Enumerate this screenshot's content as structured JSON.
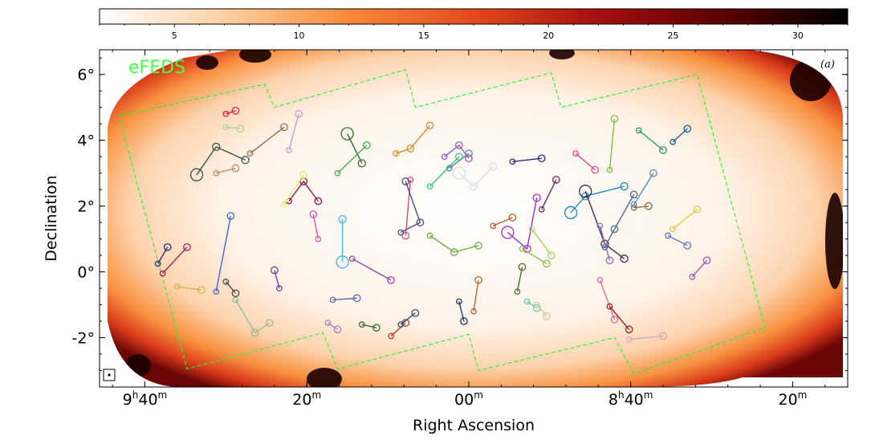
{
  "chart_data": {
    "type": "heatmap",
    "title": "",
    "panel_label": "(a)",
    "field_label": "eFEDS",
    "xlabel": "Right Ascension",
    "ylabel": "Declination",
    "colorbar": {
      "min": 2,
      "max": 32,
      "ticks": [
        5,
        10,
        15,
        20,
        25,
        30
      ],
      "tick_labels": [
        "5",
        "10",
        "15",
        "20",
        "25",
        "30"
      ],
      "colormap": "gist_heat_r",
      "stops": [
        "#ffffff",
        "#fdd0a2",
        "#f88b38",
        "#e34a1d",
        "#a50f0f",
        "#5a0000",
        "#000000"
      ]
    },
    "x_axis": {
      "range_hours": [
        9.76,
        8.22
      ],
      "ticks": [
        {
          "ra_h": 9.6667,
          "hour": "9",
          "min": "40"
        },
        {
          "ra_h": 9.3333,
          "min": "20"
        },
        {
          "ra_h": 9.0,
          "min": "00"
        },
        {
          "ra_h": 8.6667,
          "hour": "8",
          "min": "40"
        },
        {
          "ra_h": 8.3333,
          "min": "20"
        }
      ],
      "minor_step_minutes": 4
    },
    "y_axis": {
      "range_deg": [
        -3.5,
        6.75
      ],
      "ticks": [
        -2,
        0,
        2,
        4,
        6
      ],
      "tick_labels": [
        "-2°",
        "0°",
        "2°",
        "4°",
        "6°"
      ],
      "minor_step_deg": 0.5
    },
    "survey_outline": [
      [
        9.72,
        4.75
      ],
      [
        9.42,
        5.7
      ],
      [
        9.4,
        5.0
      ],
      [
        9.13,
        6.15
      ],
      [
        9.11,
        5.0
      ],
      [
        8.83,
        6.05
      ],
      [
        8.81,
        5.0
      ],
      [
        8.53,
        6.0
      ],
      [
        8.39,
        -1.7
      ],
      [
        8.66,
        -3.1
      ],
      [
        8.7,
        -2.0
      ],
      [
        8.98,
        -3.0
      ],
      [
        9.0,
        -1.9
      ],
      [
        9.27,
        -2.95
      ],
      [
        9.3,
        -1.85
      ],
      [
        9.58,
        -2.95
      ],
      [
        9.72,
        4.75
      ]
    ],
    "group_links": [
      {
        "color": "#e6194b",
        "points": [
          [
            9.5,
            4.8
          ],
          [
            9.48,
            4.9
          ]
        ]
      },
      {
        "color": "#a9d18e",
        "points": [
          [
            9.5,
            4.4
          ],
          [
            9.47,
            4.35
          ]
        ]
      },
      {
        "color": "#2f4f4f",
        "points": [
          [
            9.56,
            2.95
          ],
          [
            9.52,
            3.8
          ],
          [
            9.46,
            3.4
          ]
        ],
        "big": true
      },
      {
        "color": "#c48b6b",
        "points": [
          [
            9.52,
            3.0
          ],
          [
            9.48,
            3.15
          ]
        ]
      },
      {
        "color": "#9a6a4e",
        "points": [
          [
            9.45,
            3.6
          ],
          [
            9.38,
            4.4
          ]
        ]
      },
      {
        "color": "#b9a3d6",
        "points": [
          [
            9.37,
            3.7
          ],
          [
            9.35,
            4.8
          ]
        ]
      },
      {
        "color": "#8b1a4a",
        "points": [
          [
            9.37,
            2.15
          ],
          [
            9.34,
            2.75
          ],
          [
            9.31,
            2.15
          ]
        ]
      },
      {
        "color": "#e8e86a",
        "points": [
          [
            9.38,
            2.05
          ],
          [
            9.34,
            2.95
          ]
        ]
      },
      {
        "color": "#2e6b2e",
        "points": [
          [
            9.25,
            4.2
          ],
          [
            9.22,
            3.3
          ]
        ],
        "big": true
      },
      {
        "color": "#3cb44b",
        "points": [
          [
            9.27,
            3.0
          ],
          [
            9.21,
            3.85
          ]
        ]
      },
      {
        "color": "#4363d8",
        "points": [
          [
            9.52,
            -0.6
          ],
          [
            9.49,
            1.7
          ]
        ]
      },
      {
        "color": "#2a2a7a",
        "points": [
          [
            9.64,
            0.25
          ],
          [
            9.62,
            0.75
          ]
        ]
      },
      {
        "color": "#9a2a55",
        "points": [
          [
            9.63,
            -0.05
          ],
          [
            9.58,
            0.75
          ]
        ]
      },
      {
        "color": "#d6b04a",
        "points": [
          [
            9.6,
            -0.45
          ],
          [
            9.55,
            -0.55
          ]
        ]
      },
      {
        "color": "#8fbf8f",
        "points": [
          [
            9.48,
            -0.85
          ],
          [
            9.44,
            -1.85
          ],
          [
            9.41,
            -1.55
          ]
        ]
      },
      {
        "color": "#4a4a4a",
        "points": [
          [
            9.5,
            -0.3
          ],
          [
            9.48,
            -0.65
          ]
        ]
      },
      {
        "color": "#6a3d9a",
        "points": [
          [
            9.39,
            -0.5
          ],
          [
            9.4,
            0.05
          ]
        ]
      },
      {
        "color": "#42b4e0",
        "points": [
          [
            9.26,
            0.3
          ],
          [
            9.26,
            1.6
          ]
        ],
        "big": true
      },
      {
        "color": "#e056a8",
        "points": [
          [
            9.31,
            1.0
          ],
          [
            9.32,
            1.75
          ]
        ]
      },
      {
        "color": "#8e44ad",
        "points": [
          [
            9.24,
            0.4
          ],
          [
            9.16,
            -0.25
          ]
        ]
      },
      {
        "color": "#5b6ba8",
        "points": [
          [
            9.28,
            -0.85
          ],
          [
            9.23,
            -0.8
          ]
        ]
      },
      {
        "color": "#a080c0",
        "points": [
          [
            9.29,
            -1.55
          ],
          [
            9.27,
            -1.75
          ]
        ]
      },
      {
        "color": "#2e6b2e",
        "points": [
          [
            9.22,
            -1.6
          ],
          [
            9.19,
            -1.7
          ]
        ]
      },
      {
        "color": "#c0392b",
        "points": [
          [
            9.16,
            -1.95
          ],
          [
            9.13,
            -1.55
          ]
        ]
      },
      {
        "color": "#234f6e",
        "points": [
          [
            9.14,
            -1.6
          ],
          [
            9.11,
            -1.25
          ]
        ]
      },
      {
        "color": "#d48a2a",
        "points": [
          [
            9.15,
            3.6
          ],
          [
            9.12,
            3.75
          ],
          [
            9.08,
            4.45
          ]
        ]
      },
      {
        "color": "#e04a7a",
        "points": [
          [
            9.12,
            2.8
          ],
          [
            9.13,
            1.1
          ]
        ]
      },
      {
        "color": "#4a4a8a",
        "points": [
          [
            9.14,
            1.2
          ],
          [
            9.1,
            1.5
          ],
          [
            9.13,
            2.75
          ]
        ]
      },
      {
        "color": "#6ab04c",
        "points": [
          [
            9.08,
            1.1
          ],
          [
            9.03,
            0.6
          ],
          [
            8.98,
            0.8
          ]
        ]
      },
      {
        "color": "#2ecc71",
        "points": [
          [
            9.08,
            2.6
          ],
          [
            9.02,
            3.5
          ]
        ]
      },
      {
        "color": "#9b59b6",
        "points": [
          [
            9.05,
            3.5
          ],
          [
            9.02,
            3.85
          ],
          [
            9.0,
            3.45
          ]
        ]
      },
      {
        "color": "#5f7fa8",
        "points": [
          [
            9.04,
            3.15
          ],
          [
            9.0,
            3.6
          ]
        ]
      },
      {
        "color": "#cfe0ea",
        "points": [
          [
            9.02,
            3.0
          ],
          [
            8.99,
            2.6
          ],
          [
            8.95,
            3.2
          ]
        ],
        "big": true
      },
      {
        "color": "#1a3a6a",
        "points": [
          [
            9.02,
            -0.9
          ],
          [
            9.01,
            -1.5
          ]
        ]
      },
      {
        "color": "#b06a3a",
        "points": [
          [
            8.99,
            -1.2
          ],
          [
            8.98,
            -0.25
          ]
        ]
      },
      {
        "color": "#c05a2a",
        "points": [
          [
            8.95,
            1.4
          ],
          [
            8.91,
            1.65
          ]
        ]
      },
      {
        "color": "#2a2a8a",
        "points": [
          [
            8.91,
            3.35
          ],
          [
            8.85,
            3.45
          ]
        ]
      },
      {
        "color": "#9b30d0",
        "points": [
          [
            8.92,
            1.2
          ],
          [
            8.88,
            0.7
          ],
          [
            8.86,
            2.25
          ]
        ],
        "big": true
      },
      {
        "color": "#8bc34a",
        "points": [
          [
            8.89,
            0.7
          ],
          [
            8.84,
            0.25
          ]
        ]
      },
      {
        "color": "#a0d86a",
        "points": [
          [
            8.87,
            1.3
          ],
          [
            8.83,
            0.5
          ]
        ]
      },
      {
        "color": "#4a6a2a",
        "points": [
          [
            8.9,
            -0.6
          ],
          [
            8.89,
            0.15
          ]
        ]
      },
      {
        "color": "#5ad0a8",
        "points": [
          [
            8.88,
            -0.9
          ],
          [
            8.86,
            -1.1
          ]
        ]
      },
      {
        "color": "#e0c0a0",
        "points": [
          [
            8.86,
            -1.0
          ],
          [
            8.84,
            -1.35
          ]
        ]
      },
      {
        "color": "#6a2a5a",
        "points": [
          [
            8.85,
            1.9
          ],
          [
            8.82,
            2.8
          ]
        ]
      },
      {
        "color": "#e04a8a",
        "points": [
          [
            8.78,
            3.6
          ],
          [
            8.74,
            3.1
          ]
        ]
      },
      {
        "color": "#1a8ac0",
        "points": [
          [
            8.79,
            1.8
          ],
          [
            8.76,
            2.3
          ],
          [
            8.68,
            2.6
          ]
        ],
        "big": true
      },
      {
        "color": "#4a2a4a",
        "points": [
          [
            8.76,
            2.45
          ],
          [
            8.72,
            0.85
          ],
          [
            8.68,
            0.4
          ]
        ],
        "big": true
      },
      {
        "color": "#4a6a8a",
        "points": [
          [
            8.72,
            0.75
          ],
          [
            8.7,
            1.3
          ],
          [
            8.66,
            2.35
          ]
        ]
      },
      {
        "color": "#8a6ab0",
        "points": [
          [
            8.73,
            1.4
          ],
          [
            8.71,
            0.35
          ]
        ]
      },
      {
        "color": "#7ac04a",
        "points": [
          [
            8.71,
            3.1
          ],
          [
            8.7,
            4.65
          ]
        ]
      },
      {
        "color": "#2a9a5a",
        "points": [
          [
            8.65,
            4.3
          ],
          [
            8.6,
            3.7
          ]
        ]
      },
      {
        "color": "#5a8ac0",
        "points": [
          [
            8.66,
            2.05
          ],
          [
            8.62,
            3.0
          ]
        ]
      },
      {
        "color": "#1a5a8a",
        "points": [
          [
            8.58,
            3.95
          ],
          [
            8.55,
            4.35
          ]
        ]
      },
      {
        "color": "#8a6a3a",
        "points": [
          [
            8.66,
            1.95
          ],
          [
            8.63,
            2.0
          ]
        ]
      },
      {
        "color": "#d0d040",
        "points": [
          [
            8.58,
            1.3
          ],
          [
            8.53,
            1.9
          ]
        ]
      },
      {
        "color": "#5a7ab0",
        "points": [
          [
            8.59,
            1.1
          ],
          [
            8.55,
            0.8
          ]
        ]
      },
      {
        "color": "#9a5ab0",
        "points": [
          [
            8.54,
            -0.15
          ],
          [
            8.51,
            0.35
          ]
        ]
      },
      {
        "color": "#e070a0",
        "points": [
          [
            8.73,
            -0.25
          ],
          [
            8.7,
            -1.45
          ]
        ]
      },
      {
        "color": "#a01a1a",
        "points": [
          [
            8.71,
            -1.05
          ],
          [
            8.67,
            -1.75
          ]
        ]
      },
      {
        "color": "#e0a0c0",
        "points": [
          [
            8.67,
            -2.05
          ],
          [
            8.6,
            -1.95
          ]
        ]
      }
    ]
  }
}
